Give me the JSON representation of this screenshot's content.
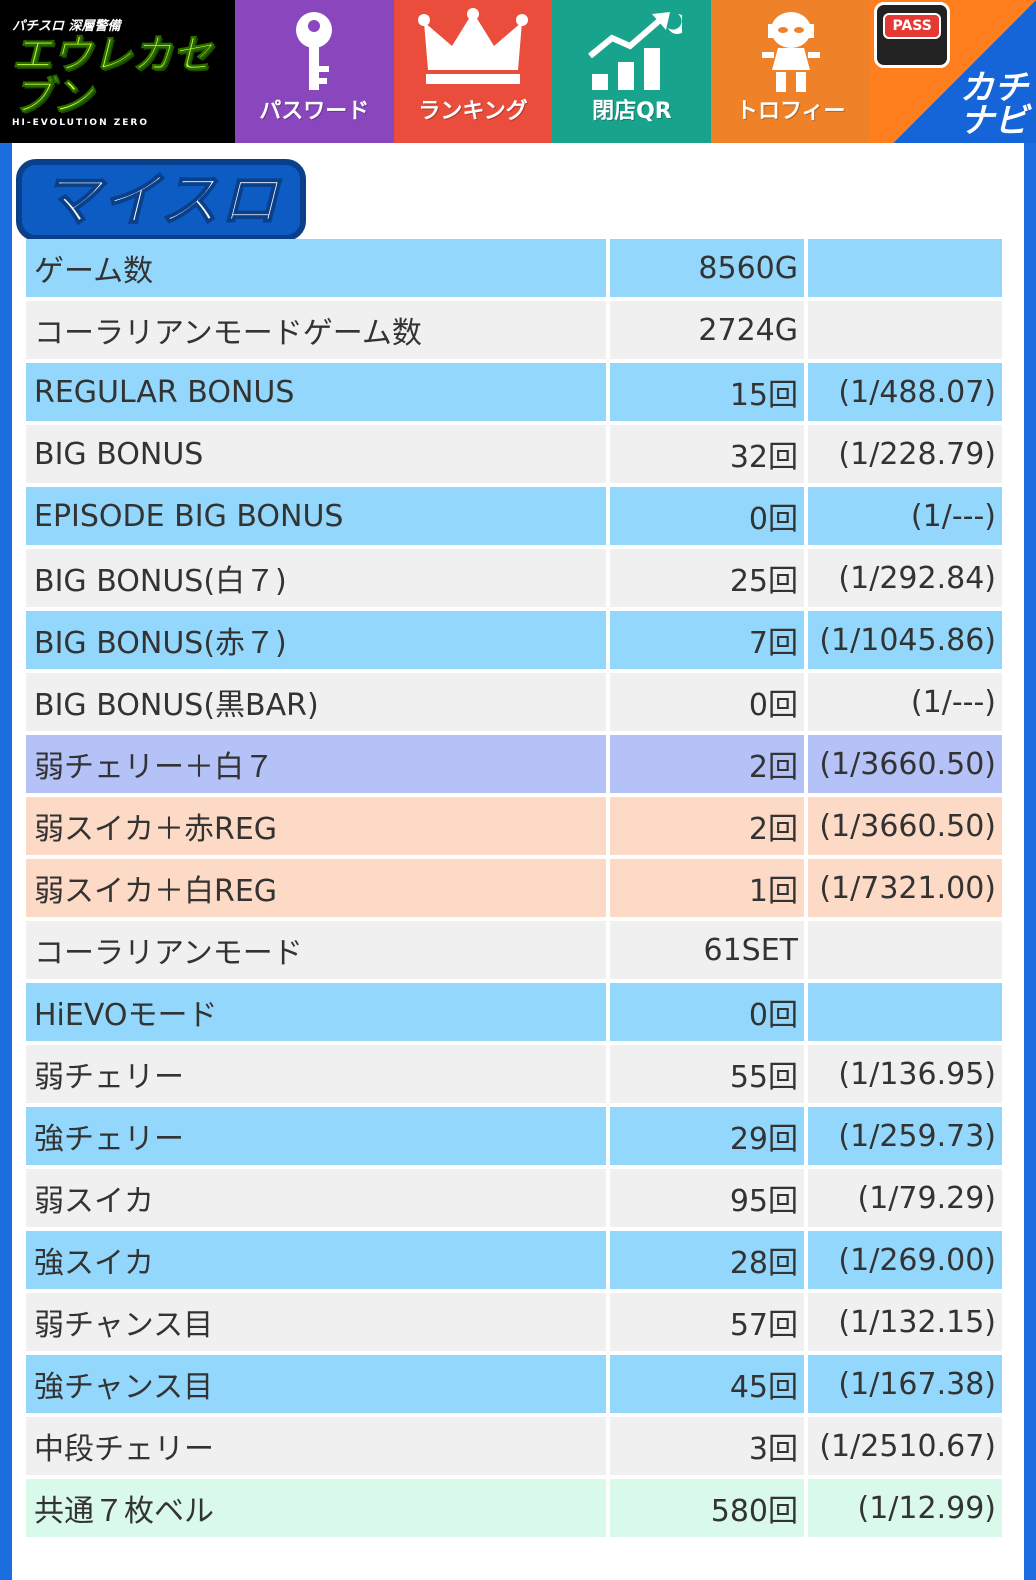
{
  "app": {
    "logo": {
      "top": "パチスロ 深層警備",
      "main": "エウレカセブン",
      "sub": "HI-EVOLUTION ZERO"
    }
  },
  "nav": {
    "items": [
      {
        "label": "パスワード",
        "icon": "key-icon",
        "color": "#8a46bd"
      },
      {
        "label": "ランキング",
        "icon": "crown-icon",
        "color": "#ea4d3b"
      },
      {
        "label": "閉店QR",
        "icon": "chart-up-icon",
        "color": "#18a48c"
      },
      {
        "label": "トロフィー",
        "icon": "trophy-figure-icon",
        "color": "#ef8228"
      }
    ],
    "pass": {
      "badge": "PASS",
      "brand_line1": "カチ",
      "brand_line2": "ナビ"
    }
  },
  "page": {
    "title": "マイスロ"
  },
  "stats": {
    "rows": [
      {
        "label": "ゲーム数",
        "value": "8560G",
        "rate": "",
        "color": "blue"
      },
      {
        "label": "コーラリアンモードゲーム数",
        "value": "2724G",
        "rate": "",
        "color": "gray"
      },
      {
        "label": "REGULAR BONUS",
        "value": "15回",
        "rate": "(1/488.07)",
        "color": "blue"
      },
      {
        "label": "BIG BONUS",
        "value": "32回",
        "rate": "(1/228.79)",
        "color": "gray"
      },
      {
        "label": "EPISODE BIG BONUS",
        "value": "0回",
        "rate": "(1/---)",
        "color": "blue"
      },
      {
        "label": "BIG BONUS(白７)",
        "value": "25回",
        "rate": "(1/292.84)",
        "color": "gray"
      },
      {
        "label": "BIG BONUS(赤７)",
        "value": "7回",
        "rate": "(1/1045.86)",
        "color": "blue"
      },
      {
        "label": "BIG BONUS(黒BAR)",
        "value": "0回",
        "rate": "(1/---)",
        "color": "gray"
      },
      {
        "label": "弱チェリー＋白７",
        "value": "2回",
        "rate": "(1/3660.50)",
        "color": "purple"
      },
      {
        "label": "弱スイカ＋赤REG",
        "value": "2回",
        "rate": "(1/3660.50)",
        "color": "peach"
      },
      {
        "label": "弱スイカ＋白REG",
        "value": "1回",
        "rate": "(1/7321.00)",
        "color": "peach"
      },
      {
        "label": "コーラリアンモード",
        "value": "61SET",
        "rate": "",
        "color": "gray"
      },
      {
        "label": "HiEVOモード",
        "value": "0回",
        "rate": "",
        "color": "blue"
      },
      {
        "label": "弱チェリー",
        "value": "55回",
        "rate": "(1/136.95)",
        "color": "gray"
      },
      {
        "label": "強チェリー",
        "value": "29回",
        "rate": "(1/259.73)",
        "color": "blue"
      },
      {
        "label": "弱スイカ",
        "value": "95回",
        "rate": "(1/79.29)",
        "color": "gray"
      },
      {
        "label": "強スイカ",
        "value": "28回",
        "rate": "(1/269.00)",
        "color": "blue"
      },
      {
        "label": "弱チャンス目",
        "value": "57回",
        "rate": "(1/132.15)",
        "color": "gray"
      },
      {
        "label": "強チャンス目",
        "value": "45回",
        "rate": "(1/167.38)",
        "color": "blue"
      },
      {
        "label": "中段チェリー",
        "value": "3回",
        "rate": "(1/2510.67)",
        "color": "gray"
      },
      {
        "label": "共通７枚ベル",
        "value": "580回",
        "rate": "(1/12.99)",
        "color": "mint"
      }
    ]
  }
}
